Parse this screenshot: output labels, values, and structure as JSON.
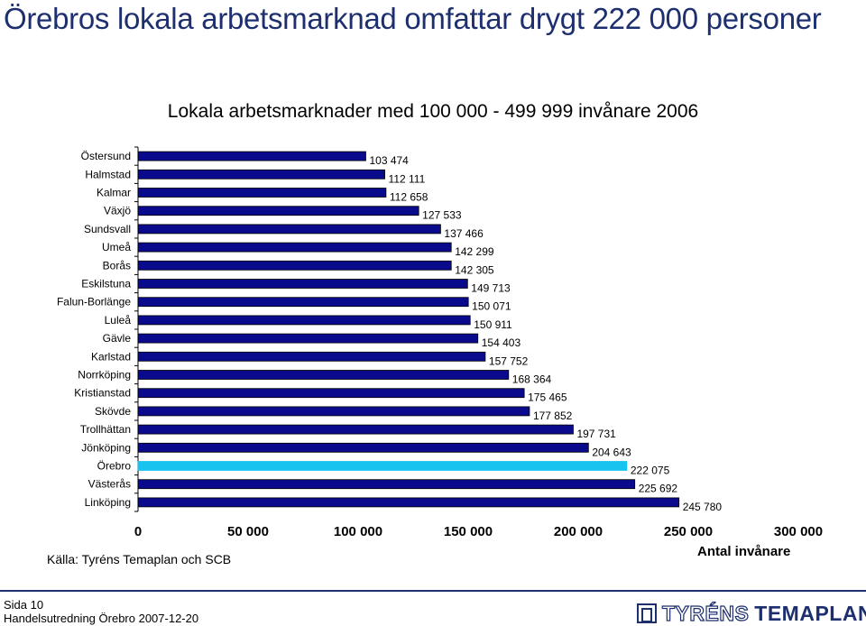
{
  "slide": {
    "title": "Örebros lokala arbetsmarknad omfattar drygt 222 000 personer"
  },
  "colors": {
    "title": "#1d2f6f",
    "bar": "#0a0a8c",
    "highlight_bar": "#18c3f0"
  },
  "chart_data": {
    "type": "bar",
    "orientation": "horizontal",
    "title": "Lokala arbetsmarknader med 100 000 - 499 999 invånare 2006",
    "xlabel": "Antal invånare",
    "ylabel": "",
    "xlim": [
      0,
      300000
    ],
    "x_ticks": [
      0,
      50000,
      100000,
      150000,
      200000,
      250000,
      300000
    ],
    "x_tick_labels": [
      "0",
      "50 000",
      "100 000",
      "150 000",
      "200 000",
      "250 000",
      "300 000"
    ],
    "grid": false,
    "legend": false,
    "highlight": "Örebro",
    "categories": [
      "Östersund",
      "Halmstad",
      "Kalmar",
      "Växjö",
      "Sundsvall",
      "Umeå",
      "Borås",
      "Eskilstuna",
      "Falun-Borlänge",
      "Luleå",
      "Gävle",
      "Karlstad",
      "Norrköping",
      "Kristianstad",
      "Skövde",
      "Trollhättan",
      "Jönköping",
      "Örebro",
      "Västerås",
      "Linköping"
    ],
    "values": [
      103474,
      112111,
      112658,
      127533,
      137466,
      142299,
      142305,
      149713,
      150071,
      150911,
      154403,
      157752,
      168364,
      175465,
      177852,
      197731,
      204643,
      222075,
      225692,
      245780
    ],
    "value_labels": [
      "103 474",
      "112 111",
      "112 658",
      "127 533",
      "137 466",
      "142 299",
      "142 305",
      "149 713",
      "150 071",
      "150 911",
      "154 403",
      "157 752",
      "168 364",
      "175 465",
      "177 852",
      "197 731",
      "204 643",
      "222 075",
      "225 692",
      "245 780"
    ],
    "source": "Källa: Tyréns Temaplan och SCB"
  },
  "footer": {
    "page": "Sida 10",
    "document": "Handelsutredning Örebro 2007-12-20",
    "logo_part1": "TYRÉNS",
    "logo_part2": "TEMAPLAN"
  }
}
